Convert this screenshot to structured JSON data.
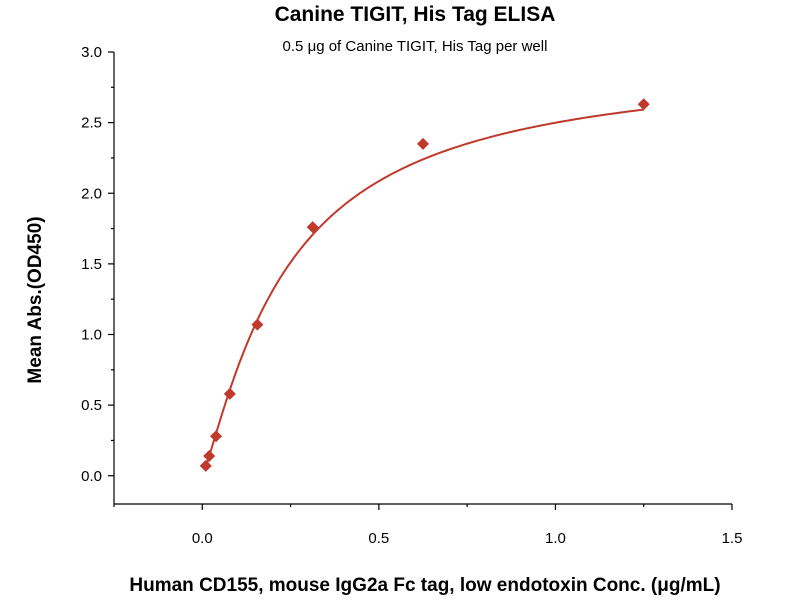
{
  "chart_data": {
    "type": "scatter",
    "title": "Canine TIGIT, His Tag ELISA",
    "subtitle": "0.5 μg of Canine TIGIT, His Tag per well",
    "xlabel": "Human CD155, mouse IgG2a Fc tag, low endotoxin Conc. (μg/mL)",
    "ylabel": "Mean Abs.(OD450)",
    "xlim": [
      -0.25,
      1.5
    ],
    "ylim": [
      -0.2,
      3.0
    ],
    "x_ticks": [
      0.0,
      0.5,
      1.0,
      1.5
    ],
    "x_tick_labels": [
      "0.0",
      "0.5",
      "1.0",
      "1.5"
    ],
    "y_ticks": [
      0.0,
      0.5,
      1.0,
      1.5,
      2.0,
      2.5,
      3.0
    ],
    "y_tick_labels": [
      "0.0",
      "0.5",
      "1.0",
      "1.5",
      "2.0",
      "2.5",
      "3.0"
    ],
    "grid": false,
    "marker": "diamond",
    "series": [
      {
        "x": [
          0.0098,
          0.0195,
          0.039,
          0.078,
          0.156,
          0.3125,
          0.625,
          1.25
        ],
        "y": [
          0.07,
          0.14,
          0.28,
          0.58,
          1.07,
          1.76,
          2.35,
          2.63
        ],
        "fit": "4PL"
      }
    ],
    "colors": {
      "series": "#c0392b",
      "axis": "#000000"
    }
  }
}
